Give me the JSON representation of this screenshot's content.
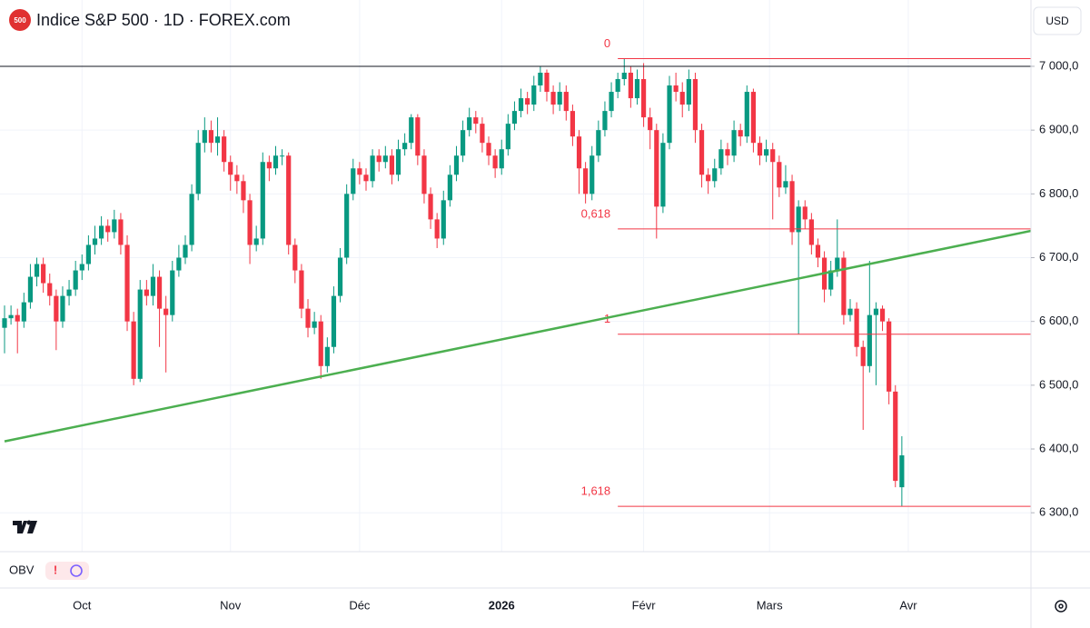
{
  "header": {
    "icon": "500",
    "title": "Indice S&P 500 · 1D · FOREX.com",
    "currency": "USD"
  },
  "chart_data": {
    "type": "candlestick",
    "up_color": "#089981",
    "down_color": "#f23645",
    "candles": [
      [
        6590,
        6625,
        6550,
        6605
      ],
      [
        6605,
        6625,
        6595,
        6610
      ],
      [
        6610,
        6620,
        6550,
        6600
      ],
      [
        6600,
        6645,
        6590,
        6630
      ],
      [
        6630,
        6690,
        6620,
        6670
      ],
      [
        6670,
        6700,
        6655,
        6690
      ],
      [
        6690,
        6700,
        6645,
        6660
      ],
      [
        6660,
        6675,
        6625,
        6640
      ],
      [
        6640,
        6650,
        6555,
        6600
      ],
      [
        6600,
        6655,
        6590,
        6640
      ],
      [
        6640,
        6665,
        6625,
        6650
      ],
      [
        6650,
        6695,
        6640,
        6680
      ],
      [
        6680,
        6705,
        6665,
        6690
      ],
      [
        6690,
        6735,
        6680,
        6720
      ],
      [
        6720,
        6750,
        6705,
        6730
      ],
      [
        6730,
        6765,
        6720,
        6750
      ],
      [
        6750,
        6760,
        6725,
        6740
      ],
      [
        6740,
        6775,
        6730,
        6760
      ],
      [
        6760,
        6770,
        6705,
        6720
      ],
      [
        6720,
        6735,
        6585,
        6600
      ],
      [
        6600,
        6615,
        6500,
        6510
      ],
      [
        6510,
        6665,
        6505,
        6650
      ],
      [
        6650,
        6665,
        6625,
        6640
      ],
      [
        6640,
        6690,
        6625,
        6670
      ],
      [
        6670,
        6680,
        6560,
        6620
      ],
      [
        6620,
        6640,
        6520,
        6610
      ],
      [
        6610,
        6695,
        6600,
        6680
      ],
      [
        6680,
        6720,
        6670,
        6700
      ],
      [
        6700,
        6735,
        6690,
        6720
      ],
      [
        6720,
        6815,
        6710,
        6800
      ],
      [
        6800,
        6900,
        6790,
        6880
      ],
      [
        6880,
        6920,
        6865,
        6900
      ],
      [
        6900,
        6915,
        6865,
        6880
      ],
      [
        6880,
        6920,
        6860,
        6890
      ],
      [
        6890,
        6900,
        6835,
        6850
      ],
      [
        6850,
        6860,
        6805,
        6830
      ],
      [
        6830,
        6845,
        6800,
        6820
      ],
      [
        6820,
        6830,
        6770,
        6790
      ],
      [
        6790,
        6800,
        6690,
        6720
      ],
      [
        6720,
        6750,
        6710,
        6730
      ],
      [
        6730,
        6865,
        6720,
        6850
      ],
      [
        6850,
        6860,
        6820,
        6840
      ],
      [
        6840,
        6875,
        6830,
        6860
      ],
      [
        6860,
        6870,
        6845,
        6860
      ],
      [
        6860,
        6865,
        6705,
        6720
      ],
      [
        6720,
        6730,
        6660,
        6680
      ],
      [
        6680,
        6690,
        6605,
        6620
      ],
      [
        6620,
        6635,
        6575,
        6590
      ],
      [
        6590,
        6615,
        6580,
        6600
      ],
      [
        6600,
        6610,
        6510,
        6530
      ],
      [
        6530,
        6575,
        6520,
        6560
      ],
      [
        6560,
        6655,
        6550,
        6640
      ],
      [
        6640,
        6715,
        6630,
        6700
      ],
      [
        6700,
        6815,
        6690,
        6800
      ],
      [
        6800,
        6855,
        6790,
        6840
      ],
      [
        6840,
        6850,
        6815,
        6830
      ],
      [
        6830,
        6840,
        6805,
        6820
      ],
      [
        6820,
        6870,
        6810,
        6860
      ],
      [
        6860,
        6870,
        6835,
        6850
      ],
      [
        6850,
        6875,
        6840,
        6860
      ],
      [
        6860,
        6870,
        6815,
        6830
      ],
      [
        6830,
        6885,
        6820,
        6870
      ],
      [
        6870,
        6895,
        6860,
        6880
      ],
      [
        6880,
        6925,
        6870,
        6920
      ],
      [
        6920,
        6925,
        6845,
        6860
      ],
      [
        6860,
        6870,
        6785,
        6800
      ],
      [
        6800,
        6810,
        6745,
        6760
      ],
      [
        6760,
        6770,
        6715,
        6730
      ],
      [
        6730,
        6805,
        6720,
        6790
      ],
      [
        6790,
        6845,
        6780,
        6830
      ],
      [
        6830,
        6875,
        6820,
        6860
      ],
      [
        6860,
        6915,
        6850,
        6900
      ],
      [
        6900,
        6935,
        6890,
        6920
      ],
      [
        6920,
        6930,
        6895,
        6910
      ],
      [
        6910,
        6920,
        6865,
        6880
      ],
      [
        6880,
        6890,
        6845,
        6860
      ],
      [
        6860,
        6870,
        6825,
        6840
      ],
      [
        6840,
        6885,
        6830,
        6870
      ],
      [
        6870,
        6925,
        6860,
        6910
      ],
      [
        6910,
        6945,
        6900,
        6930
      ],
      [
        6930,
        6965,
        6920,
        6950
      ],
      [
        6950,
        6960,
        6925,
        6940
      ],
      [
        6940,
        6985,
        6930,
        6970
      ],
      [
        6970,
        7000,
        6960,
        6990
      ],
      [
        6990,
        6995,
        6945,
        6960
      ],
      [
        6960,
        6970,
        6925,
        6940
      ],
      [
        6940,
        6975,
        6930,
        6960
      ],
      [
        6960,
        6970,
        6915,
        6930
      ],
      [
        6930,
        6940,
        6875,
        6890
      ],
      [
        6890,
        6900,
        6800,
        6840
      ],
      [
        6840,
        6850,
        6785,
        6800
      ],
      [
        6800,
        6875,
        6790,
        6860
      ],
      [
        6860,
        6915,
        6850,
        6900
      ],
      [
        6900,
        6945,
        6890,
        6930
      ],
      [
        6930,
        6975,
        6920,
        6960
      ],
      [
        6960,
        6990,
        6950,
        6980
      ],
      [
        6980,
        7012,
        6970,
        6990
      ],
      [
        6990,
        7000,
        6935,
        6950
      ],
      [
        6950,
        6995,
        6940,
        6980
      ],
      [
        6980,
        7005,
        6905,
        6920
      ],
      [
        6920,
        6935,
        6870,
        6900
      ],
      [
        6900,
        6910,
        6730,
        6780
      ],
      [
        6780,
        6895,
        6770,
        6880
      ],
      [
        6880,
        6985,
        6870,
        6970
      ],
      [
        6970,
        6990,
        6945,
        6960
      ],
      [
        6960,
        6975,
        6920,
        6940
      ],
      [
        6940,
        6995,
        6930,
        6980
      ],
      [
        6980,
        6990,
        6880,
        6900
      ],
      [
        6900,
        6910,
        6810,
        6830
      ],
      [
        6830,
        6840,
        6800,
        6820
      ],
      [
        6820,
        6855,
        6810,
        6840
      ],
      [
        6840,
        6885,
        6830,
        6870
      ],
      [
        6870,
        6880,
        6845,
        6860
      ],
      [
        6860,
        6915,
        6850,
        6900
      ],
      [
        6900,
        6910,
        6875,
        6890
      ],
      [
        6890,
        6970,
        6880,
        6960
      ],
      [
        6960,
        6965,
        6865,
        6880
      ],
      [
        6880,
        6890,
        6845,
        6860
      ],
      [
        6860,
        6885,
        6850,
        6870
      ],
      [
        6870,
        6880,
        6760,
        6850
      ],
      [
        6850,
        6860,
        6795,
        6810
      ],
      [
        6810,
        6845,
        6800,
        6820
      ],
      [
        6820,
        6830,
        6720,
        6740
      ],
      [
        6740,
        6790,
        6580,
        6780
      ],
      [
        6780,
        6790,
        6745,
        6760
      ],
      [
        6760,
        6770,
        6705,
        6720
      ],
      [
        6720,
        6730,
        6685,
        6700
      ],
      [
        6700,
        6710,
        6630,
        6650
      ],
      [
        6650,
        6695,
        6640,
        6680
      ],
      [
        6680,
        6760,
        6670,
        6700
      ],
      [
        6700,
        6710,
        6595,
        6610
      ],
      [
        6610,
        6635,
        6600,
        6620
      ],
      [
        6620,
        6630,
        6545,
        6560
      ],
      [
        6560,
        6570,
        6430,
        6530
      ],
      [
        6530,
        6695,
        6520,
        6610
      ],
      [
        6610,
        6630,
        6500,
        6620
      ],
      [
        6620,
        6625,
        6585,
        6600
      ],
      [
        6600,
        6605,
        6470,
        6490
      ],
      [
        6490,
        6500,
        6340,
        6350
      ],
      [
        6340,
        6420,
        6310,
        6390
      ]
    ],
    "xlim": [
      0,
      159
    ],
    "xticks": [
      {
        "value": 12,
        "label": "Oct"
      },
      {
        "value": 35,
        "label": "Nov"
      },
      {
        "value": 55,
        "label": "Déc"
      },
      {
        "value": 77,
        "label": "2026"
      },
      {
        "value": 99,
        "label": "Févr"
      },
      {
        "value": 118.5,
        "label": "Mars"
      },
      {
        "value": 140,
        "label": "Avr"
      }
    ],
    "ylim": [
      6239,
      7104
    ],
    "yticks": [
      {
        "value": 6300,
        "label": "6 300,0"
      },
      {
        "value": 6400,
        "label": "6 400,0"
      },
      {
        "value": 6500,
        "label": "6 500,0"
      },
      {
        "value": 6600,
        "label": "6 600,0"
      },
      {
        "value": 6700,
        "label": "6 700,0"
      },
      {
        "value": 6800,
        "label": "6 800,0"
      },
      {
        "value": 6900,
        "label": "6 900,0"
      },
      {
        "value": 7000,
        "label": "7 000,0"
      }
    ],
    "price_line": 7000,
    "trendline": {
      "color": "#4caf50",
      "x": [
        0,
        159
      ],
      "y": [
        6412,
        6742
      ]
    },
    "fib": {
      "color": "#f23645",
      "x_start": 95,
      "levels": [
        {
          "label": "0",
          "value": 7012
        },
        {
          "label": "0,618",
          "value": 6745
        },
        {
          "label": "1",
          "value": 6580
        },
        {
          "label": "1,618",
          "value": 6310
        }
      ]
    },
    "indicator": "OBV"
  }
}
